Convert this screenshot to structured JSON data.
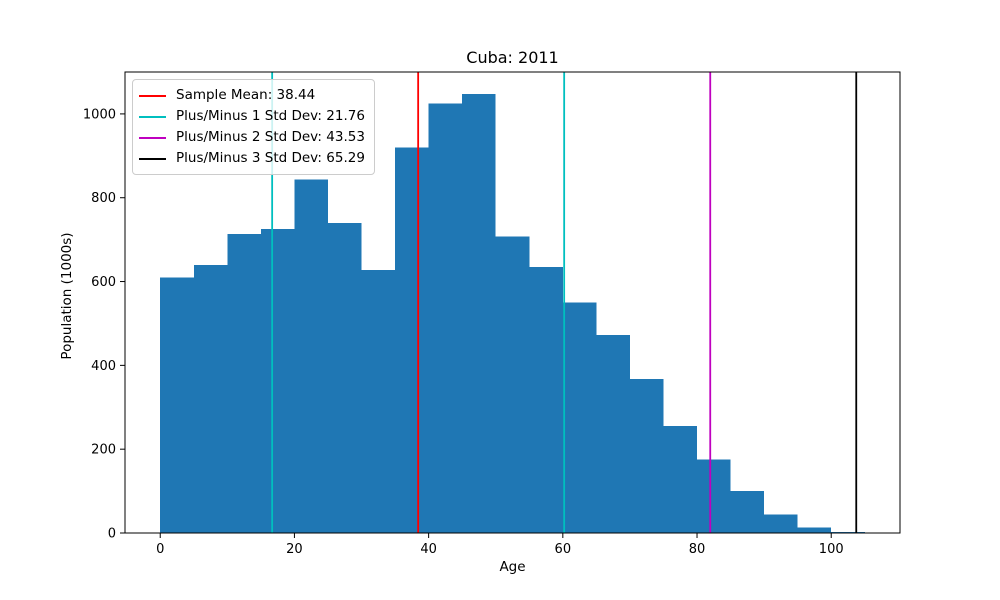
{
  "title": "Cuba: 2011",
  "xlabel": "Age",
  "ylabel": "Population (1000s)",
  "legend": {
    "position": "upper left",
    "items": [
      {
        "name": "sample-mean",
        "label": "Sample Mean: 38.44",
        "color": "#ff0000"
      },
      {
        "name": "plus-minus-1-std",
        "label": "Plus/Minus 1 Std Dev: 21.76",
        "color": "#00bfbf"
      },
      {
        "name": "plus-minus-2-std",
        "label": "Plus/Minus 2 Std Dev: 43.53",
        "color": "#bf00bf"
      },
      {
        "name": "plus-minus-3-std",
        "label": "Plus/Minus 3 Std Dev: 65.29",
        "color": "#000000"
      }
    ]
  },
  "chart_data": {
    "type": "bar",
    "subtype": "histogram",
    "title": "Cuba: 2011",
    "xlabel": "Age",
    "ylabel": "Population (1000s)",
    "bar_color": "#1f77b4",
    "bin_edges": [
      0,
      5,
      10,
      15,
      20,
      25,
      30,
      35,
      40,
      45,
      50,
      55,
      60,
      65,
      70,
      75,
      80,
      85,
      90,
      95,
      100,
      105
    ],
    "values": [
      610,
      640,
      713,
      725,
      843,
      740,
      627,
      920,
      1025,
      1048,
      707,
      635,
      550,
      473,
      368,
      255,
      175,
      100,
      44,
      13,
      2
    ],
    "x_ticks": [
      0,
      20,
      40,
      60,
      80,
      100
    ],
    "y_ticks": [
      0,
      200,
      400,
      600,
      800,
      1000
    ],
    "xlim": [
      -5.25,
      110.25
    ],
    "ylim": [
      0,
      1100
    ],
    "grid": false,
    "stats": {
      "sample_mean": 38.44,
      "std_dev_1": 21.76,
      "std_dev_2": 43.53,
      "std_dev_3": 65.29
    },
    "vlines": [
      {
        "name": "minus-1-std-dev-line",
        "x": 16.68,
        "color": "#00bfbf"
      },
      {
        "name": "sample-mean-line",
        "x": 38.44,
        "color": "#ff0000"
      },
      {
        "name": "plus-1-std-dev-line",
        "x": 60.2,
        "color": "#00bfbf"
      },
      {
        "name": "plus-2-std-dev-line",
        "x": 81.97,
        "color": "#bf00bf"
      },
      {
        "name": "plus-3-std-dev-line",
        "x": 103.73,
        "color": "#000000"
      }
    ]
  }
}
